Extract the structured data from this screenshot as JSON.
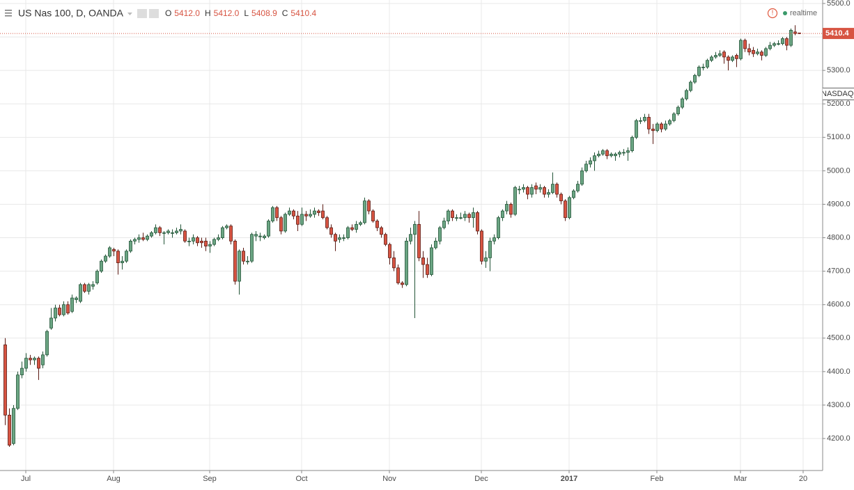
{
  "chart_data": {
    "type": "candlestick",
    "title": "US Nas 100, D, OANDA",
    "ohlc_legend": [
      {
        "label": "O",
        "value": "5412.0"
      },
      {
        "label": "H",
        "value": "5412.0"
      },
      {
        "label": "L",
        "value": "5408.9"
      },
      {
        "label": "C",
        "value": "5410.4"
      }
    ],
    "status": "realtime",
    "compare_label": "NASDAQ",
    "last_price": {
      "value": 5410.4,
      "label": "5410.4"
    },
    "up_color": "#6ba583",
    "up_border": "#225437",
    "down_color": "#d75442",
    "down_border": "#5b1a13",
    "grid": true,
    "xlim": [
      -1.17,
      195.67
    ],
    "xticks": [
      {
        "value": 5,
        "label": "Jul"
      },
      {
        "value": 26,
        "label": "Aug"
      },
      {
        "value": 49,
        "label": "Sep"
      },
      {
        "value": 71,
        "label": "Oct"
      },
      {
        "value": 92,
        "label": "Nov"
      },
      {
        "value": 114,
        "label": "Dec"
      },
      {
        "value": 135,
        "label": "2017"
      },
      {
        "value": 156,
        "label": "Feb"
      },
      {
        "value": 176,
        "label": "Mar"
      },
      {
        "value": 191,
        "label": "20"
      }
    ],
    "ylim": [
      4104.4,
      5510.4
    ],
    "yticks": [
      {
        "value": 4200,
        "label": "4200.0"
      },
      {
        "value": 4300,
        "label": "4300.0"
      },
      {
        "value": 4400,
        "label": "4400.0"
      },
      {
        "value": 4500,
        "label": "4500.0"
      },
      {
        "value": 4600,
        "label": "4600.0"
      },
      {
        "value": 4700,
        "label": "4700.0"
      },
      {
        "value": 4800,
        "label": "4800.0"
      },
      {
        "value": 4900,
        "label": "4900.0"
      },
      {
        "value": 5000,
        "label": "5000.0"
      },
      {
        "value": 5100,
        "label": "5100.0"
      },
      {
        "value": 5200,
        "label": "5200.0"
      },
      {
        "value": 5300,
        "label": "5300.0"
      },
      {
        "value": 5400,
        "label": "5400.0"
      },
      {
        "value": 5500,
        "label": "5500.0"
      }
    ],
    "open": [
      4480,
      4270,
      4185,
      4290,
      4390,
      4410,
      4440,
      4435,
      4440,
      4420,
      4450,
      4530,
      4560,
      4590,
      4570,
      4600,
      4580,
      4615,
      4610,
      4660,
      4640,
      4655,
      4665,
      4700,
      4730,
      4745,
      4765,
      4760,
      4725,
      4730,
      4760,
      4790,
      4795,
      4800,
      4795,
      4805,
      4815,
      4830,
      4815,
      4815,
      4815,
      4815,
      4820,
      4820,
      4790,
      4790,
      4800,
      4790,
      4790,
      4775,
      4780,
      4795,
      4800,
      4830,
      4835,
      4790,
      4670,
      4760,
      4730,
      4730,
      4805,
      4805,
      4800,
      4805,
      4850,
      4890,
      4860,
      4820,
      4870,
      4880,
      4865,
      4840,
      4870,
      4865,
      4870,
      4880,
      4880,
      4860,
      4830,
      4810,
      4795,
      4800,
      4800,
      4830,
      4825,
      4840,
      4845,
      4910,
      4880,
      4850,
      4830,
      4810,
      4780,
      4740,
      4710,
      4665,
      4660,
      4790,
      4810,
      4840,
      4740,
      4720,
      4690,
      4770,
      4790,
      4830,
      4850,
      4880,
      4860,
      4860,
      4860,
      4870,
      4860,
      4875,
      4820,
      4730,
      4740,
      4790,
      4800,
      4860,
      4880,
      4900,
      4870,
      4945,
      4945,
      4950,
      4930,
      4955,
      4945,
      4950,
      4930,
      4935,
      4960,
      4930,
      4910,
      4860,
      4920,
      4940,
      4960,
      5000,
      5020,
      5030,
      5045,
      5050,
      5060,
      5045,
      5045,
      5050,
      5055,
      5055,
      5060,
      5100,
      5150,
      5150,
      5160,
      5125,
      5120,
      5140,
      5125,
      5140,
      5150,
      5170,
      5190,
      5215,
      5240,
      5265,
      5285,
      5310,
      5310,
      5330,
      5340,
      5345,
      5355,
      5340,
      5330,
      5345,
      5335,
      5390,
      5365,
      5360,
      5350,
      5355,
      5345,
      5365,
      5375,
      5380,
      5380,
      5395,
      5375,
      5415,
      5412
    ],
    "high": [
      4500,
      4290,
      4300,
      4400,
      4430,
      4455,
      4450,
      4445,
      4445,
      4460,
      4525,
      4590,
      4600,
      4600,
      4610,
      4610,
      4630,
      4625,
      4665,
      4665,
      4665,
      4670,
      4705,
      4735,
      4750,
      4775,
      4770,
      4765,
      4745,
      4765,
      4795,
      4800,
      4810,
      4815,
      4810,
      4820,
      4840,
      4835,
      4820,
      4825,
      4825,
      4830,
      4840,
      4825,
      4800,
      4810,
      4805,
      4800,
      4800,
      4790,
      4800,
      4810,
      4835,
      4840,
      4840,
      4795,
      4765,
      4770,
      4745,
      4815,
      4820,
      4815,
      4810,
      4855,
      4895,
      4895,
      4865,
      4875,
      4890,
      4885,
      4880,
      4890,
      4880,
      4885,
      4890,
      4885,
      4900,
      4865,
      4840,
      4815,
      4810,
      4810,
      4835,
      4840,
      4850,
      4850,
      4920,
      4915,
      4885,
      4855,
      4835,
      4815,
      4785,
      4760,
      4720,
      4670,
      4800,
      4830,
      4850,
      4880,
      4760,
      4740,
      4780,
      4800,
      4835,
      4860,
      4885,
      4885,
      4870,
      4875,
      4880,
      4875,
      4890,
      4880,
      4825,
      4760,
      4800,
      4810,
      4865,
      4885,
      4910,
      4905,
      4955,
      4955,
      4960,
      4955,
      4960,
      4965,
      4960,
      4955,
      4945,
      4995,
      4965,
      4935,
      4915,
      4925,
      4945,
      4970,
      5010,
      5030,
      5040,
      5055,
      5060,
      5065,
      5065,
      5055,
      5055,
      5060,
      5065,
      5070,
      5105,
      5155,
      5160,
      5170,
      5170,
      5140,
      5145,
      5145,
      5150,
      5155,
      5175,
      5195,
      5220,
      5245,
      5270,
      5290,
      5315,
      5320,
      5335,
      5345,
      5355,
      5360,
      5360,
      5345,
      5345,
      5350,
      5395,
      5395,
      5380,
      5370,
      5365,
      5360,
      5370,
      5385,
      5385,
      5390,
      5400,
      5400,
      5425,
      5435,
      5412
    ],
    "low": [
      4240,
      4175,
      4180,
      4285,
      4380,
      4400,
      4420,
      4420,
      4375,
      4410,
      4445,
      4525,
      4550,
      4565,
      4565,
      4570,
      4575,
      4605,
      4605,
      4635,
      4630,
      4645,
      4660,
      4695,
      4725,
      4740,
      4745,
      4690,
      4705,
      4725,
      4755,
      4780,
      4785,
      4790,
      4790,
      4800,
      4810,
      4805,
      4780,
      4810,
      4800,
      4810,
      4810,
      4785,
      4775,
      4780,
      4775,
      4770,
      4760,
      4755,
      4775,
      4790,
      4795,
      4825,
      4780,
      4660,
      4630,
      4720,
      4720,
      4725,
      4790,
      4790,
      4795,
      4800,
      4845,
      4850,
      4810,
      4815,
      4865,
      4855,
      4820,
      4835,
      4850,
      4860,
      4860,
      4865,
      4855,
      4825,
      4800,
      4760,
      4785,
      4790,
      4795,
      4820,
      4815,
      4835,
      4840,
      4870,
      4845,
      4820,
      4800,
      4775,
      4720,
      4700,
      4660,
      4650,
      4655,
      4780,
      4560,
      4730,
      4680,
      4680,
      4685,
      4765,
      4780,
      4825,
      4840,
      4850,
      4850,
      4855,
      4850,
      4845,
      4830,
      4810,
      4720,
      4710,
      4700,
      4780,
      4795,
      4850,
      4870,
      4860,
      4865,
      4930,
      4935,
      4915,
      4920,
      4930,
      4935,
      4920,
      4920,
      4930,
      4920,
      4900,
      4850,
      4855,
      4915,
      4935,
      4955,
      4995,
      5010,
      5000,
      5040,
      5045,
      5035,
      5040,
      5030,
      5040,
      5045,
      5030,
      5055,
      5095,
      5140,
      5145,
      5110,
      5080,
      5115,
      5115,
      5120,
      5135,
      5145,
      5165,
      5185,
      5210,
      5235,
      5260,
      5280,
      5300,
      5305,
      5325,
      5335,
      5340,
      5320,
      5300,
      5325,
      5310,
      5330,
      5355,
      5345,
      5340,
      5345,
      5330,
      5340,
      5360,
      5370,
      5375,
      5375,
      5360,
      5370,
      5405,
      5408.9
    ],
    "close": [
      4270,
      4180,
      4290,
      4390,
      4410,
      4440,
      4435,
      4440,
      4410,
      4450,
      4520,
      4560,
      4590,
      4570,
      4600,
      4575,
      4620,
      4620,
      4660,
      4640,
      4660,
      4660,
      4700,
      4730,
      4745,
      4770,
      4760,
      4725,
      4730,
      4760,
      4790,
      4795,
      4800,
      4795,
      4805,
      4815,
      4830,
      4815,
      4815,
      4820,
      4815,
      4820,
      4825,
      4790,
      4790,
      4800,
      4785,
      4785,
      4775,
      4780,
      4795,
      4800,
      4830,
      4835,
      4790,
      4670,
      4760,
      4730,
      4730,
      4810,
      4810,
      4805,
      4805,
      4850,
      4890,
      4860,
      4820,
      4870,
      4880,
      4865,
      4840,
      4870,
      4865,
      4870,
      4880,
      4875,
      4860,
      4830,
      4810,
      4790,
      4800,
      4800,
      4830,
      4825,
      4840,
      4845,
      4910,
      4880,
      4850,
      4830,
      4810,
      4780,
      4740,
      4710,
      4665,
      4660,
      4790,
      4810,
      4840,
      4740,
      4720,
      4690,
      4770,
      4790,
      4830,
      4850,
      4880,
      4860,
      4860,
      4860,
      4870,
      4860,
      4875,
      4820,
      4730,
      4740,
      4790,
      4800,
      4860,
      4880,
      4900,
      4870,
      4950,
      4945,
      4950,
      4930,
      4950,
      4945,
      4950,
      4930,
      4935,
      4960,
      4930,
      4910,
      4860,
      4920,
      4940,
      4960,
      5000,
      5020,
      5030,
      5045,
      5050,
      5060,
      5045,
      5050,
      5050,
      5055,
      5055,
      5060,
      5100,
      5150,
      5150,
      5160,
      5125,
      5120,
      5140,
      5125,
      5140,
      5150,
      5170,
      5190,
      5215,
      5240,
      5265,
      5285,
      5310,
      5310,
      5330,
      5340,
      5345,
      5350,
      5340,
      5330,
      5340,
      5335,
      5390,
      5365,
      5355,
      5350,
      5355,
      5345,
      5365,
      5375,
      5380,
      5380,
      5395,
      5375,
      5420,
      5410,
      5410.4
    ]
  }
}
